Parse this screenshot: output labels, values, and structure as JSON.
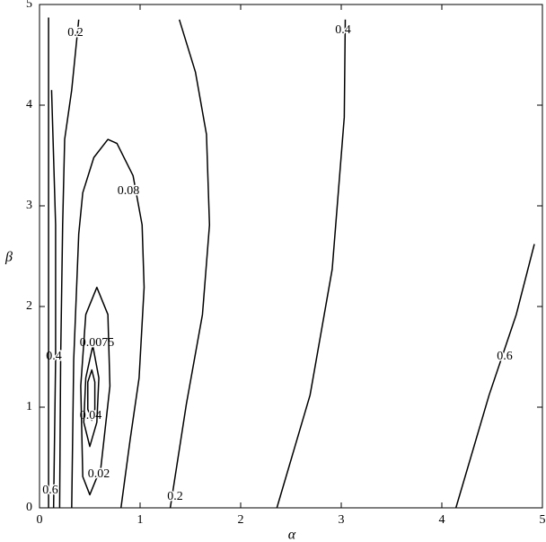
{
  "chart_data": {
    "type": "contour",
    "x_label": "α",
    "y_label": "β",
    "xlim": [
      0,
      5
    ],
    "ylim": [
      0,
      5
    ],
    "xticks": [
      0,
      1,
      2,
      3,
      4,
      5
    ],
    "yticks": [
      0,
      1,
      2,
      3,
      4,
      5
    ],
    "color": "#000000",
    "contours": [
      {
        "label": "0.04",
        "closed": true,
        "x": [
          0.52,
          0.55,
          0.55,
          0.52,
          0.48,
          0.48
        ],
        "y": [
          1.37,
          1.25,
          0.98,
          0.87,
          0.98,
          1.25
        ]
      },
      {
        "label": "0.0075",
        "closed": true,
        "x": [
          0.53,
          0.59,
          0.57,
          0.5,
          0.44,
          0.46
        ],
        "y": [
          1.61,
          1.29,
          0.85,
          0.61,
          0.85,
          1.29
        ]
      },
      {
        "label": "0.02",
        "closed": true,
        "x": [
          0.57,
          0.68,
          0.7,
          0.61,
          0.5,
          0.43,
          0.41,
          0.46
        ],
        "y": [
          2.19,
          1.92,
          1.21,
          0.4,
          0.13,
          0.31,
          1.21,
          1.92
        ]
      },
      {
        "label": "0.08",
        "closed": false,
        "x": [
          0.32,
          0.34,
          0.39,
          0.43,
          0.54,
          0.68,
          0.77,
          0.93,
          1.02,
          1.04,
          0.99,
          0.9,
          0.81
        ],
        "y": [
          0,
          1.47,
          2.72,
          3.13,
          3.48,
          3.66,
          3.62,
          3.3,
          2.81,
          2.19,
          1.29,
          0.67,
          0
        ]
      },
      {
        "label": "0.2",
        "closed": false,
        "x": [
          1.3,
          1.46,
          1.62,
          1.69,
          1.66,
          1.55,
          1.39
        ],
        "y": [
          0,
          1.03,
          1.92,
          2.81,
          3.71,
          4.33,
          4.85
        ]
      },
      {
        "label": "0.2",
        "closed": false,
        "x": [
          0.39,
          0.32,
          0.25,
          0.23,
          0.21,
          0.2
        ],
        "y": [
          4.85,
          4.15,
          3.66,
          2.81,
          1.47,
          0
        ]
      },
      {
        "label": "0.4",
        "closed": false,
        "x": [
          0.14,
          0.16,
          0.16,
          0.12
        ],
        "y": [
          0,
          1.47,
          2.81,
          4.15
        ]
      },
      {
        "label": "0.6",
        "closed": false,
        "x": [
          0.09,
          0.09
        ],
        "y": [
          4.87,
          0
        ]
      },
      {
        "label": "0.4",
        "closed": false,
        "x": [
          3.04,
          3.03,
          2.91,
          2.69,
          2.36
        ],
        "y": [
          4.85,
          3.88,
          2.37,
          1.12,
          0
        ]
      },
      {
        "label": "0.6",
        "closed": false,
        "x": [
          4.92,
          4.74,
          4.47,
          4.14
        ],
        "y": [
          2.62,
          1.92,
          1.12,
          0
        ]
      }
    ]
  }
}
